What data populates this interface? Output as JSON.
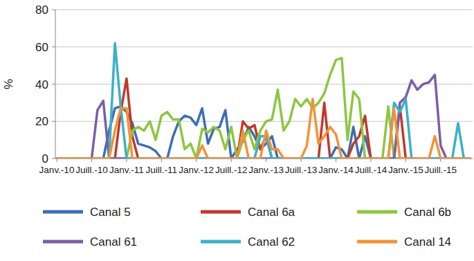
{
  "chart_data": {
    "type": "line",
    "y_label": "%",
    "categories": [
      "Janv.-10",
      null,
      null,
      null,
      null,
      null,
      "Juill.-10",
      null,
      null,
      null,
      null,
      null,
      "Janv.-11",
      null,
      null,
      null,
      null,
      null,
      "Juill.-11",
      null,
      null,
      null,
      null,
      null,
      "Janv.-12",
      null,
      null,
      null,
      null,
      null,
      "Juill.-12",
      null,
      null,
      null,
      null,
      null,
      "Janv.-13",
      null,
      null,
      null,
      null,
      null,
      "Juill.-13",
      null,
      null,
      null,
      null,
      null,
      "Janv.-14",
      null,
      null,
      null,
      null,
      null,
      "Juill.-14",
      null,
      null,
      null,
      null,
      null,
      "Janv.-15",
      null,
      null,
      null,
      null,
      null,
      "Juill.-15",
      null,
      null,
      null,
      null,
      null
    ],
    "series": [
      {
        "name": "Canal 5",
        "color": "#3d6eb4",
        "values": [
          0,
          0,
          0,
          0,
          0,
          0,
          0,
          0,
          0,
          15,
          27,
          28,
          25,
          19,
          8,
          7,
          6,
          4,
          0,
          0,
          12,
          20,
          23,
          22,
          18,
          27,
          8,
          16,
          17,
          26,
          0,
          5,
          9,
          17,
          12,
          5,
          8,
          12,
          0,
          0,
          0,
          0,
          0,
          0,
          0,
          0,
          0,
          0,
          6,
          5,
          0,
          17,
          0,
          12,
          0,
          0,
          0,
          0,
          0,
          0,
          0,
          0,
          0,
          0,
          0,
          0,
          0,
          0,
          0,
          0,
          0,
          0
        ]
      },
      {
        "name": "Canal 6a",
        "color": "#c0392b",
        "values": [
          0,
          0,
          0,
          0,
          0,
          0,
          0,
          0,
          0,
          0,
          0,
          25,
          43,
          12,
          0,
          0,
          0,
          0,
          0,
          0,
          0,
          0,
          0,
          0,
          0,
          0,
          0,
          0,
          0,
          0,
          0,
          0,
          20,
          16,
          18,
          5,
          12,
          0,
          0,
          0,
          0,
          0,
          0,
          0,
          0,
          0,
          30,
          0,
          0,
          0,
          0,
          8,
          12,
          23,
          0,
          0,
          0,
          0,
          0,
          28,
          0,
          0,
          0,
          0,
          0,
          0,
          0,
          0,
          0,
          0,
          0,
          0
        ]
      },
      {
        "name": "Canal 6b",
        "color": "#8dc641",
        "values": [
          0,
          0,
          0,
          0,
          0,
          0,
          0,
          0,
          0,
          0,
          0,
          0,
          0,
          15,
          17,
          15,
          20,
          10,
          23,
          25,
          21,
          21,
          5,
          8,
          0,
          16,
          14,
          17,
          15,
          5,
          17,
          0,
          10,
          15,
          5,
          15,
          20,
          21,
          37,
          15,
          20,
          32,
          28,
          32,
          27,
          30,
          35,
          45,
          53,
          54,
          10,
          36,
          32,
          0,
          0,
          0,
          0,
          28,
          0,
          0,
          0,
          0,
          0,
          0,
          0,
          0,
          0,
          0,
          0,
          0,
          0,
          0
        ]
      },
      {
        "name": "Canal 61",
        "color": "#7b5ea7",
        "values": [
          0,
          0,
          0,
          0,
          0,
          0,
          0,
          26,
          31,
          0,
          0,
          0,
          0,
          0,
          0,
          0,
          0,
          0,
          0,
          0,
          0,
          0,
          0,
          0,
          0,
          0,
          0,
          0,
          0,
          0,
          0,
          0,
          0,
          0,
          0,
          0,
          0,
          0,
          0,
          0,
          0,
          0,
          0,
          0,
          0,
          0,
          0,
          0,
          0,
          0,
          0,
          0,
          0,
          0,
          0,
          0,
          0,
          0,
          0,
          30,
          33,
          42,
          37,
          40,
          41,
          45,
          7,
          0,
          0,
          0,
          0,
          0
        ]
      },
      {
        "name": "Canal 62",
        "color": "#3bb0c9",
        "values": [
          0,
          0,
          0,
          0,
          0,
          0,
          0,
          0,
          0,
          0,
          62,
          28,
          0,
          0,
          0,
          0,
          0,
          0,
          0,
          0,
          0,
          0,
          0,
          0,
          0,
          0,
          0,
          0,
          0,
          0,
          0,
          0,
          0,
          0,
          0,
          12,
          12,
          0,
          0,
          0,
          0,
          0,
          0,
          0,
          0,
          0,
          0,
          0,
          0,
          0,
          0,
          0,
          0,
          0,
          0,
          0,
          0,
          0,
          30,
          25,
          32,
          0,
          0,
          0,
          0,
          0,
          0,
          0,
          0,
          19,
          0,
          0
        ]
      },
      {
        "name": "Canal 14",
        "color": "#f39237",
        "values": [
          0,
          0,
          0,
          0,
          0,
          0,
          0,
          0,
          0,
          0,
          15,
          27,
          27,
          0,
          0,
          0,
          0,
          0,
          0,
          0,
          0,
          0,
          0,
          0,
          0,
          7,
          0,
          0,
          0,
          0,
          0,
          0,
          15,
          0,
          0,
          0,
          15,
          5,
          5,
          0,
          0,
          0,
          0,
          7,
          32,
          8,
          12,
          17,
          13,
          0,
          0,
          0,
          0,
          0,
          0,
          0,
          0,
          0,
          27,
          0,
          0,
          0,
          0,
          0,
          0,
          12,
          0,
          0,
          0,
          0,
          0,
          0
        ]
      }
    ],
    "ylim": [
      0,
      80
    ],
    "yticks": [
      0,
      20,
      40,
      60,
      80
    ],
    "grid": true,
    "legend": "bottom"
  }
}
